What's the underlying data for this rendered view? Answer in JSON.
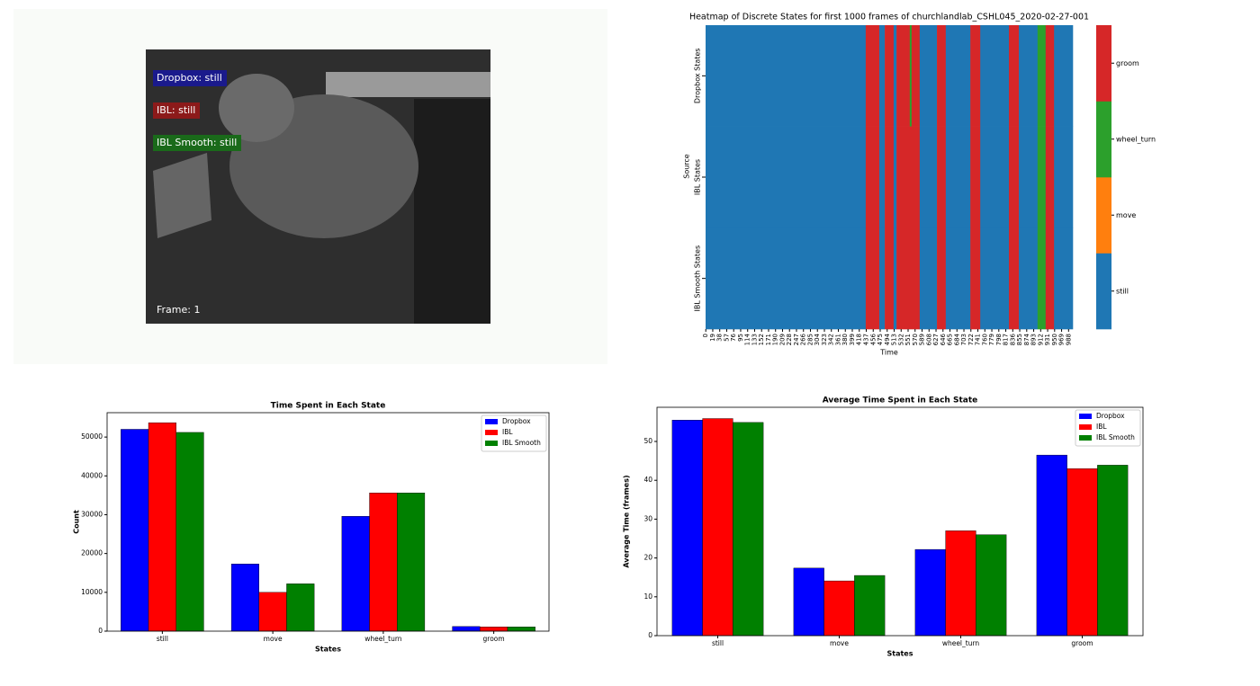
{
  "video": {
    "overlays": [
      "Dropbox: still",
      "IBL: still",
      "IBL Smooth: still"
    ],
    "frame": "Frame: 1"
  },
  "chart_data": [
    {
      "type": "heatmap",
      "title": "Heatmap of Discrete States for first 1000 frames of churchlandlab_CSHL045_2020-02-27-001",
      "x_label": "Time",
      "y_label": "Source",
      "xlim": [
        0,
        1000
      ],
      "xticks": [
        0,
        19,
        38,
        57,
        76,
        95,
        114,
        133,
        152,
        171,
        190,
        209,
        228,
        247,
        266,
        285,
        304,
        323,
        342,
        361,
        380,
        399,
        418,
        437,
        456,
        475,
        494,
        513,
        532,
        551,
        570,
        589,
        608,
        627,
        646,
        665,
        684,
        703,
        722,
        741,
        760,
        779,
        798,
        817,
        836,
        855,
        874,
        893,
        912,
        931,
        950,
        969,
        988
      ],
      "states": [
        {
          "name": "still",
          "color": "#1f77b4"
        },
        {
          "name": "move",
          "color": "#ff7f0e"
        },
        {
          "name": "wheel_turn",
          "color": "#2ca02c"
        },
        {
          "name": "groom",
          "color": "#d62728"
        }
      ],
      "rows": [
        {
          "name": "Dropbox States",
          "runs": [
            [
              0,
              436,
              0
            ],
            [
              436,
              473,
              3
            ],
            [
              473,
              488,
              0
            ],
            [
              488,
              512,
              3
            ],
            [
              512,
              520,
              0
            ],
            [
              520,
              556,
              3
            ],
            [
              556,
              561,
              2
            ],
            [
              561,
              583,
              3
            ],
            [
              583,
              630,
              0
            ],
            [
              630,
              654,
              3
            ],
            [
              654,
              721,
              0
            ],
            [
              721,
              748,
              3
            ],
            [
              748,
              826,
              0
            ],
            [
              826,
              853,
              3
            ],
            [
              853,
              904,
              0
            ],
            [
              904,
              926,
              2
            ],
            [
              926,
              949,
              3
            ],
            [
              949,
              1000,
              0
            ]
          ]
        },
        {
          "name": "IBL States",
          "runs": [
            [
              0,
              436,
              0
            ],
            [
              436,
              473,
              3
            ],
            [
              473,
              488,
              0
            ],
            [
              488,
              512,
              3
            ],
            [
              512,
              520,
              0
            ],
            [
              520,
              583,
              3
            ],
            [
              583,
              630,
              0
            ],
            [
              630,
              654,
              3
            ],
            [
              654,
              721,
              0
            ],
            [
              721,
              748,
              3
            ],
            [
              748,
              826,
              0
            ],
            [
              826,
              853,
              3
            ],
            [
              853,
              904,
              0
            ],
            [
              904,
              926,
              2
            ],
            [
              926,
              949,
              3
            ],
            [
              949,
              1000,
              0
            ]
          ]
        },
        {
          "name": "IBL Smooth States",
          "runs": [
            [
              0,
              436,
              0
            ],
            [
              436,
              473,
              3
            ],
            [
              473,
              488,
              0
            ],
            [
              488,
              512,
              3
            ],
            [
              512,
              520,
              0
            ],
            [
              520,
              583,
              3
            ],
            [
              583,
              630,
              0
            ],
            [
              630,
              654,
              3
            ],
            [
              654,
              721,
              0
            ],
            [
              721,
              748,
              3
            ],
            [
              748,
              826,
              0
            ],
            [
              826,
              853,
              3
            ],
            [
              853,
              904,
              0
            ],
            [
              904,
              926,
              2
            ],
            [
              926,
              949,
              3
            ],
            [
              949,
              1000,
              0
            ]
          ]
        }
      ]
    },
    {
      "type": "bar",
      "title": "Time Spent in Each State",
      "x_label": "States",
      "y_label": "Count",
      "categories": [
        "still",
        "move",
        "wheel_turn",
        "groom"
      ],
      "series": [
        {
          "name": "Dropbox",
          "color": "#0000ff",
          "values": [
            52000,
            17300,
            29600,
            1200
          ]
        },
        {
          "name": "IBL",
          "color": "#ff0000",
          "values": [
            53700,
            10000,
            35600,
            1100
          ]
        },
        {
          "name": "IBL Smooth",
          "color": "#008000",
          "values": [
            51200,
            12200,
            35600,
            1100
          ]
        }
      ],
      "ylim": [
        0,
        56280
      ],
      "yticks": [
        0,
        10000,
        20000,
        30000,
        40000,
        50000
      ],
      "legend": "upper right"
    },
    {
      "type": "bar",
      "title": "Average Time Spent in Each State",
      "x_label": "States",
      "y_label": "Average Time (frames)",
      "categories": [
        "still",
        "move",
        "wheel_turn",
        "groom"
      ],
      "series": [
        {
          "name": "Dropbox",
          "color": "#0000ff",
          "values": [
            55.5,
            17.4,
            22.2,
            46.5
          ]
        },
        {
          "name": "IBL",
          "color": "#ff0000",
          "values": [
            55.9,
            14.1,
            27,
            43
          ]
        },
        {
          "name": "IBL Smooth",
          "color": "#008000",
          "values": [
            54.9,
            15.5,
            26,
            43.9
          ]
        }
      ],
      "ylim": [
        0,
        58.8
      ],
      "yticks": [
        0,
        10,
        20,
        30,
        40,
        50
      ],
      "legend": "upper right"
    }
  ]
}
